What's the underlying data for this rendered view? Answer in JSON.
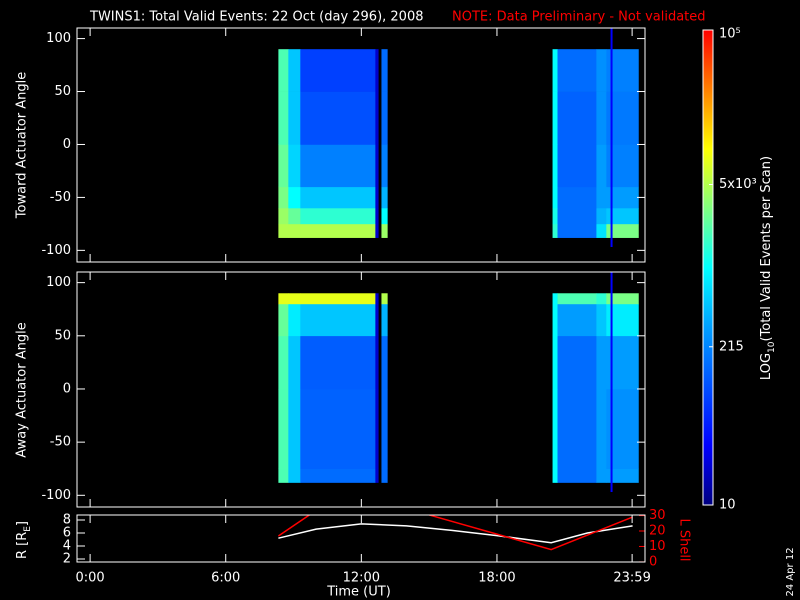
{
  "header": {
    "title": "TWINS1: Total Valid Events: 22 Oct (day 296), 2008",
    "note": "NOTE: Data Preliminary - Not validated",
    "date_stamp": "24 Apr 12"
  },
  "colorbar": {
    "label_main": "LOG",
    "label_sub": "10",
    "label_rest": "(Total Valid Events per Scan)",
    "log": true,
    "zlim": [
      10,
      100000
    ],
    "ticks": [
      10,
      215,
      {
        "value": 5000,
        "label": "5x10³"
      },
      {
        "value": 100000,
        "label": "10⁵"
      }
    ],
    "colormap": [
      "#000080",
      "#0000ff",
      "#0050ff",
      "#00a0ff",
      "#00ffff",
      "#80ff80",
      "#ffff00",
      "#ff8000",
      "#ff0000"
    ]
  },
  "chart_data": [
    {
      "type": "heatmap",
      "ylabel": "Toward Actuator Angle",
      "xlim": [
        -0.58,
        24.55
      ],
      "ylim": [
        -111,
        110
      ],
      "yticks": [
        -100,
        -50,
        0,
        50,
        100
      ],
      "x_bins": [
        8.33,
        8.77,
        9.3,
        12.62,
        12.75,
        12.89,
        13.15,
        20.46,
        20.68,
        22.4,
        22.84,
        24.26
      ],
      "y_bins": [
        -88,
        -75,
        -60,
        -40,
        0,
        50,
        90
      ],
      "z": [
        [
          5000,
          5000,
          5000,
          20,
          null,
          4000,
          null,
          1500,
          150,
          700,
          3000
        ],
        [
          4000,
          2500,
          1500,
          20,
          null,
          1000,
          null,
          1200,
          150,
          400,
          500
        ],
        [
          3000,
          1000,
          500,
          20,
          null,
          400,
          null,
          1000,
          150,
          300,
          300
        ],
        [
          2500,
          600,
          200,
          20,
          null,
          200,
          null,
          1000,
          130,
          300,
          200
        ],
        [
          2000,
          500,
          100,
          20,
          null,
          150,
          null,
          1000,
          130,
          250,
          180
        ],
        [
          2000,
          500,
          80,
          20,
          null,
          150,
          null,
          1000,
          150,
          250,
          200
        ]
      ],
      "vline": 23.07,
      "vline_color": "#0000ff"
    },
    {
      "type": "heatmap",
      "ylabel": "Away Actuator Angle",
      "xlim": [
        -0.58,
        24.55
      ],
      "ylim": [
        -111,
        110
      ],
      "yticks": [
        -100,
        -50,
        0,
        50,
        100
      ],
      "x_bins": [
        8.33,
        8.77,
        9.3,
        12.62,
        12.75,
        12.89,
        13.15,
        20.46,
        20.68,
        22.4,
        22.84,
        24.26
      ],
      "y_bins": [
        -88,
        -75,
        0,
        50,
        80,
        90
      ],
      "z": [
        [
          2000,
          500,
          150,
          20,
          null,
          150,
          null,
          1000,
          150,
          300,
          300
        ],
        [
          2000,
          500,
          130,
          20,
          null,
          150,
          null,
          1000,
          150,
          300,
          250
        ],
        [
          2000,
          500,
          120,
          20,
          null,
          150,
          null,
          1000,
          150,
          300,
          300
        ],
        [
          2500,
          800,
          500,
          20,
          null,
          400,
          null,
          1000,
          300,
          500,
          800
        ],
        [
          8000,
          8000,
          8000,
          20,
          null,
          5000,
          null,
          1000,
          2000,
          1500,
          3000
        ]
      ],
      "vline": 23.07,
      "vline_color": "#0000ff"
    },
    {
      "type": "line",
      "xlabel": "Time (UT)",
      "ylabel_main": "R [R",
      "ylabel_sub": "E",
      "ylabel_end": "]",
      "y2label": "L Shell",
      "xlim": [
        -0.58,
        24.55
      ],
      "xticks": [
        {
          "value": 0,
          "label": "0:00"
        },
        {
          "value": 6,
          "label": "6:00"
        },
        {
          "value": 12,
          "label": "12:00"
        },
        {
          "value": 18,
          "label": "18:00"
        },
        {
          "value": 23.98,
          "label": "23:59"
        }
      ],
      "ylim": [
        1.54,
        8.77
      ],
      "yticks": [
        2,
        4,
        6,
        8
      ],
      "y2lim": [
        -0.07,
        30.37
      ],
      "y2ticks": [
        0,
        10,
        20,
        30
      ],
      "y2color": "#ff0000",
      "series": [
        {
          "name": "R",
          "color": "#ffffff",
          "x": [
            8.33,
            10,
            12,
            14,
            16,
            18,
            20.4,
            22,
            24
          ],
          "values": [
            5.2,
            6.6,
            7.4,
            7.1,
            6.4,
            5.6,
            4.5,
            6.0,
            7.1
          ]
        },
        {
          "name": "L",
          "color": "#ff0000",
          "axis": "y2",
          "x": [
            8.33,
            9.7,
            12,
            15,
            20.4,
            24
          ],
          "values": [
            16.8,
            30.4,
            null,
            30.4,
            8,
            29
          ]
        }
      ]
    }
  ]
}
